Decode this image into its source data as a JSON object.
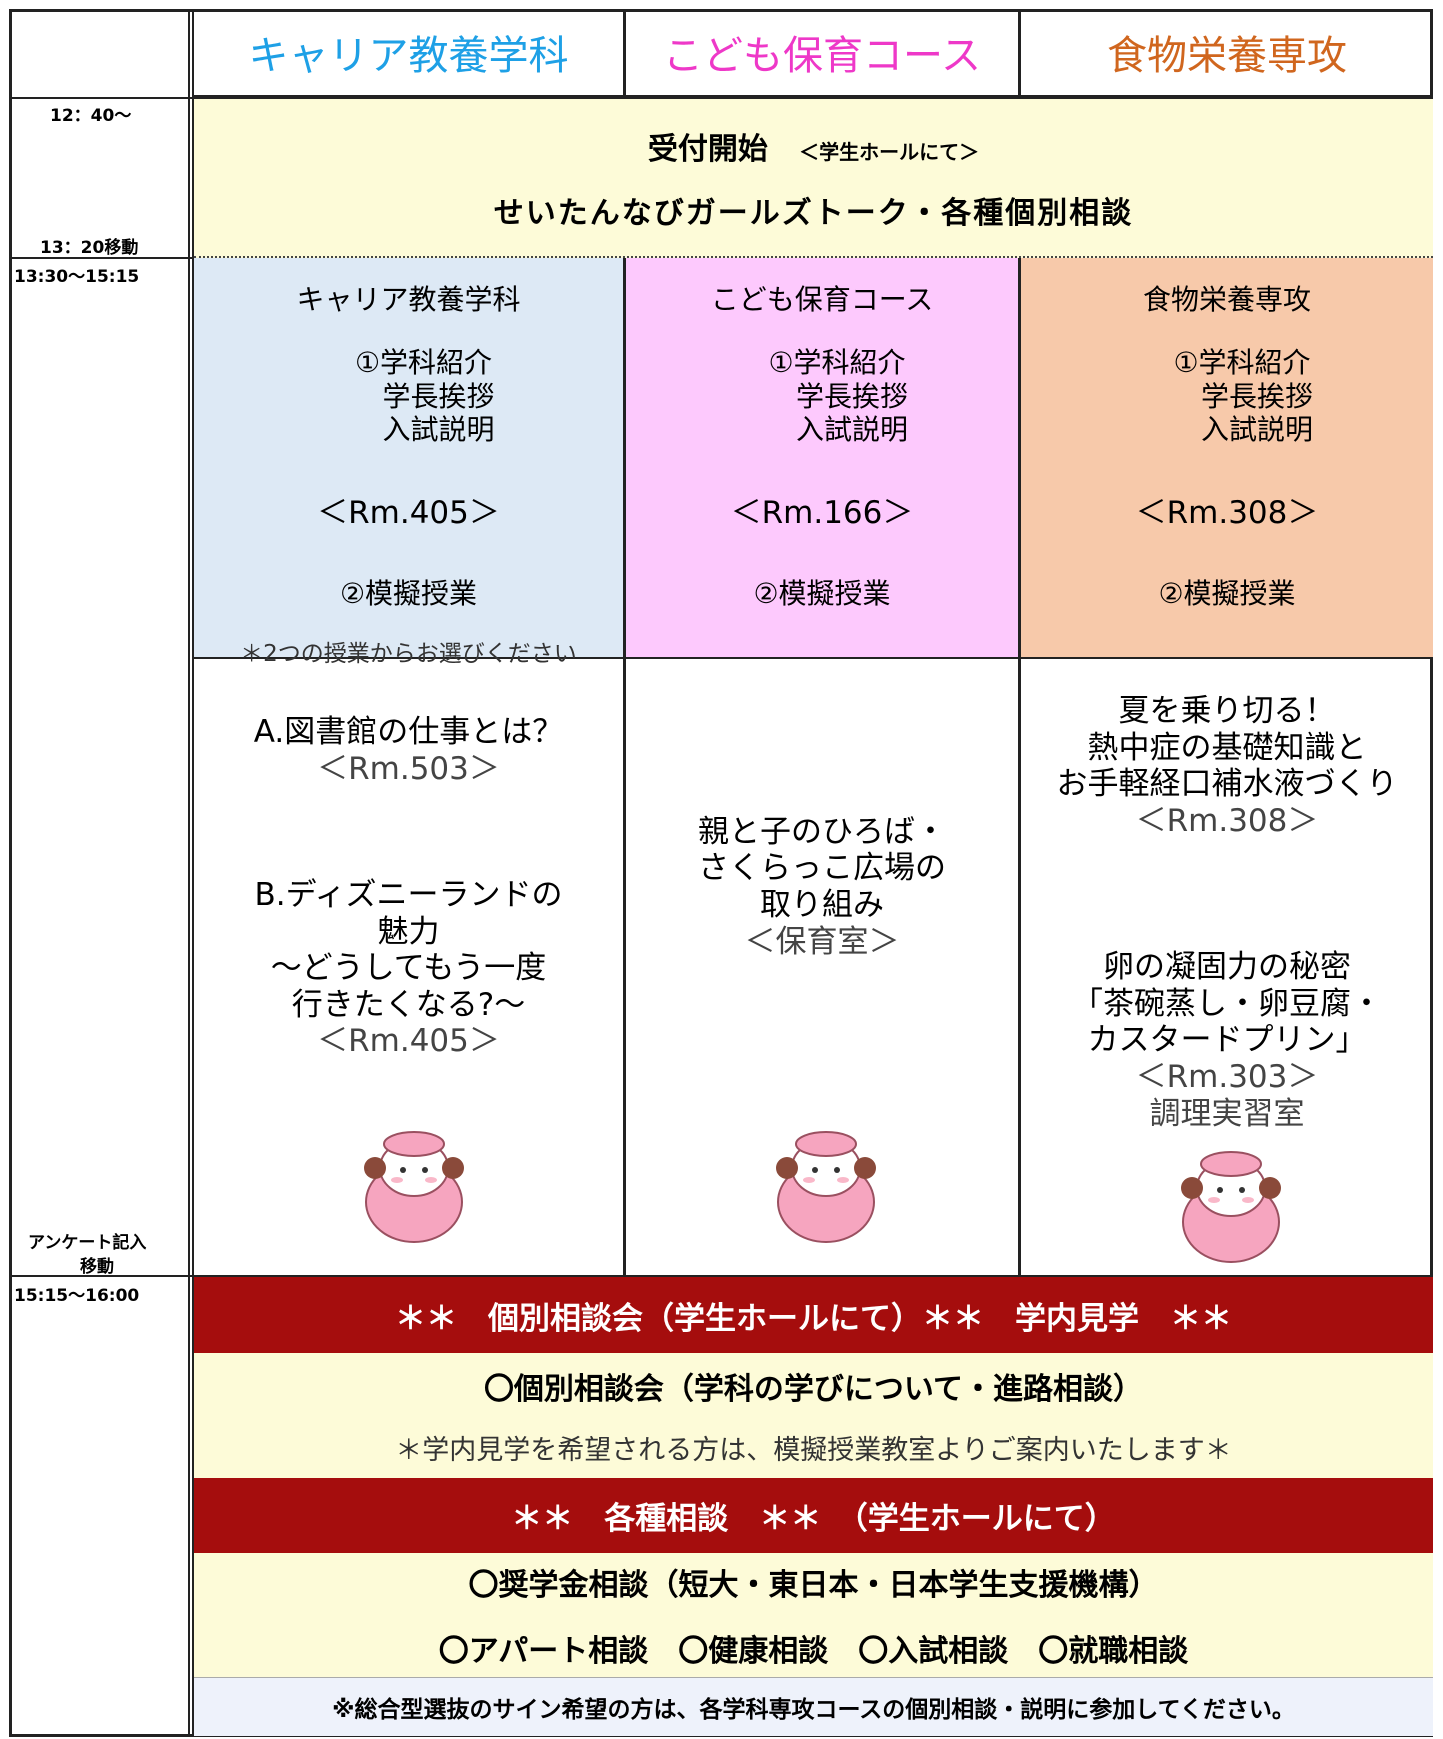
{
  "header": {
    "columns": [
      "キャリア教養学科",
      "こども保育コース",
      "食物栄養専攻"
    ]
  },
  "times": [
    "12：40～",
    "13：20移動",
    "13:30～15:15",
    "アンケート記入",
    "移動",
    "15:15～16:00"
  ],
  "reception": {
    "title": "受付開始",
    "location": "＜学生ホールにて＞",
    "subtitle": "せいたんなびガールズトーク・各種個別相談"
  },
  "sessions": [
    {
      "name": "キャリア教養学科",
      "items": [
        "①学科紹介",
        "学長挨拶",
        "入試説明"
      ],
      "room": "＜Rm.405＞",
      "mock": "②模擬授業",
      "note": "＊2つの授業からお選びください"
    },
    {
      "name": "こども保育コース",
      "items": [
        "①学科紹介",
        "学長挨拶",
        "入試説明"
      ],
      "room": "＜Rm.166＞",
      "mock": "②模擬授業"
    },
    {
      "name": "食物栄養専攻",
      "items": [
        "①学科紹介",
        "学長挨拶",
        "入試説明"
      ],
      "room": "＜Rm.308＞",
      "mock": "②模擬授業"
    }
  ],
  "classes": [
    {
      "groups": [
        [
          "A.図書館の仕事とは？",
          "＜Rm.503＞"
        ],
        [
          "B.ディズニーランドの",
          "魅力",
          "～どうしてもう一度",
          "行きたくなる?～",
          "＜Rm.405＞"
        ]
      ]
    },
    {
      "groups": [
        [
          "親と子のひろば・",
          "さくらっこ広場の",
          "取り組み",
          "＜保育室＞"
        ]
      ]
    },
    {
      "groups": [
        [
          "夏を乗り切る！",
          "熱中症の基礎知識と",
          "お手軽経口補水液づくり",
          "＜Rm.308＞"
        ],
        [
          "卵の凝固力の秘密",
          "「茶碗蒸し・卵豆腐・",
          "カスタードプリン」",
          "＜Rm.303＞",
          "調理実習室"
        ]
      ]
    }
  ],
  "bottom": {
    "banner1": "＊＊　個別相談会（学生ホールにて）＊＊　学内見学　＊＊",
    "consult": "〇個別相談会（学科の学びについて・進路相談）",
    "tour_note": "＊学内見学を希望される方は、模擬授業教室よりご案内いたします＊",
    "banner2": "＊＊　各種相談　＊＊　（学生ホールにて）",
    "scholarship": "〇奨学金相談（短大・東日本・日本学生支援機構）",
    "others": "〇アパート相談　〇健康相談　〇入試相談　〇就職相談",
    "footnote": "※総合型選抜のサイン希望の方は、各学科専攻コースの個別相談・説明に参加してください。"
  }
}
